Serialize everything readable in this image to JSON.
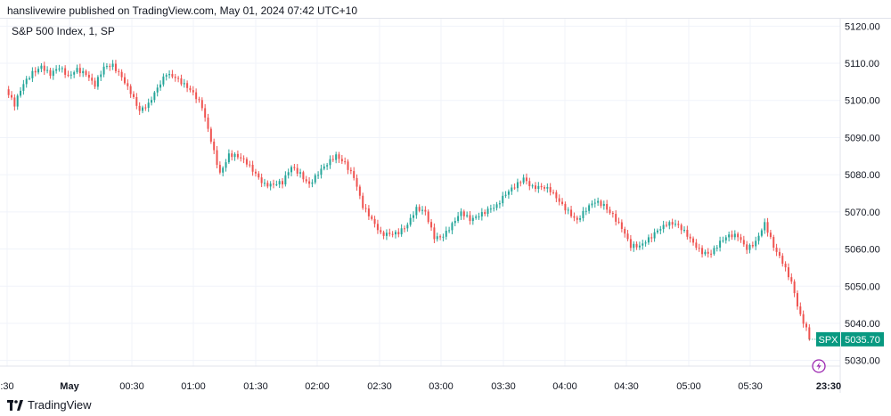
{
  "header": {
    "published_line": "hanslivewire published on TradingView.com, May 01, 2024 07:42 UTC+10"
  },
  "legend": {
    "symbol_line": "S&P 500 Index, 1, SP"
  },
  "footer": {
    "brand": "TradingView",
    "logo_icon": "tradingview-logo-icon"
  },
  "colors": {
    "up": "#26a69a",
    "down": "#ef5350",
    "grid": "#f0f3fa",
    "axis_text": "#131722",
    "price_badge": "#089981",
    "flash_icon": "#9c27b0"
  },
  "chart_data": {
    "type": "candlestick",
    "ylim": [
      5028,
      5122
    ],
    "y_ticks": [
      5030,
      5040,
      5050,
      5060,
      5070,
      5080,
      5090,
      5100,
      5110,
      5120
    ],
    "y_tick_labels": [
      "5030.00",
      "5040.00",
      "5050.00",
      "5060.00",
      "5070.00",
      "5080.00",
      "5090.00",
      "5100.00",
      "5110.00",
      "5120.00"
    ],
    "x_ticks": [
      ":30",
      "May",
      "00:30",
      "01:00",
      "01:30",
      "02:00",
      "02:30",
      "03:00",
      "03:30",
      "04:00",
      "04:30",
      "05:00",
      "05:30",
      "23:30"
    ],
    "bold_x_ticks": [
      "May",
      "23:30"
    ],
    "grid": true,
    "last_price": 5035.7,
    "last_price_label": "5035.70",
    "symbol_badge": "SPX",
    "close_path": [
      [
        0,
        5103
      ],
      [
        3,
        5098
      ],
      [
        6,
        5104
      ],
      [
        9,
        5108
      ],
      [
        12,
        5110
      ],
      [
        15,
        5107
      ],
      [
        18,
        5108
      ],
      [
        21,
        5106
      ],
      [
        24,
        5109
      ],
      [
        27,
        5108
      ],
      [
        30,
        5104
      ],
      [
        33,
        5108
      ],
      [
        36,
        5109
      ],
      [
        39,
        5107
      ],
      [
        42,
        5103
      ],
      [
        45,
        5097
      ],
      [
        48,
        5098
      ],
      [
        51,
        5103
      ],
      [
        54,
        5108
      ],
      [
        57,
        5107
      ],
      [
        60,
        5104
      ],
      [
        63,
        5101
      ],
      [
        66,
        5098
      ],
      [
        69,
        5090
      ],
      [
        72,
        5081
      ],
      [
        75,
        5085
      ],
      [
        78,
        5084
      ],
      [
        81,
        5083
      ],
      [
        84,
        5081
      ],
      [
        87,
        5078
      ],
      [
        90,
        5077
      ],
      [
        93,
        5077
      ],
      [
        96,
        5082
      ],
      [
        99,
        5081
      ],
      [
        102,
        5078
      ],
      [
        105,
        5080
      ],
      [
        108,
        5082
      ],
      [
        111,
        5085
      ],
      [
        114,
        5084
      ],
      [
        117,
        5080
      ],
      [
        120,
        5071
      ],
      [
        123,
        5067
      ],
      [
        126,
        5064
      ],
      [
        129,
        5065
      ],
      [
        132,
        5065
      ],
      [
        135,
        5066
      ],
      [
        138,
        5070
      ],
      [
        141,
        5070
      ],
      [
        144,
        5064
      ],
      [
        147,
        5064
      ],
      [
        150,
        5066
      ],
      [
        153,
        5069
      ],
      [
        156,
        5068
      ],
      [
        159,
        5070
      ],
      [
        162,
        5071
      ],
      [
        165,
        5071
      ],
      [
        168,
        5074
      ],
      [
        171,
        5077
      ],
      [
        174,
        5080
      ],
      [
        177,
        5077
      ],
      [
        180,
        5076
      ],
      [
        183,
        5075
      ],
      [
        186,
        5073
      ],
      [
        189,
        5071
      ],
      [
        192,
        5068
      ],
      [
        195,
        5070
      ],
      [
        198,
        5072
      ],
      [
        201,
        5072
      ],
      [
        204,
        5070
      ],
      [
        207,
        5066
      ],
      [
        210,
        5060
      ],
      [
        213,
        5060
      ],
      [
        216,
        5063
      ],
      [
        219,
        5066
      ],
      [
        222,
        5067
      ],
      [
        225,
        5066
      ],
      [
        228,
        5064
      ],
      [
        231,
        5062
      ],
      [
        234,
        5060
      ],
      [
        237,
        5059
      ],
      [
        240,
        5061
      ],
      [
        243,
        5063
      ],
      [
        246,
        5064
      ],
      [
        249,
        5061
      ],
      [
        252,
        5062
      ],
      [
        255,
        5066
      ],
      [
        258,
        5060
      ],
      [
        261,
        5057
      ],
      [
        264,
        5052
      ],
      [
        267,
        5042
      ],
      [
        270,
        5036
      ]
    ]
  }
}
